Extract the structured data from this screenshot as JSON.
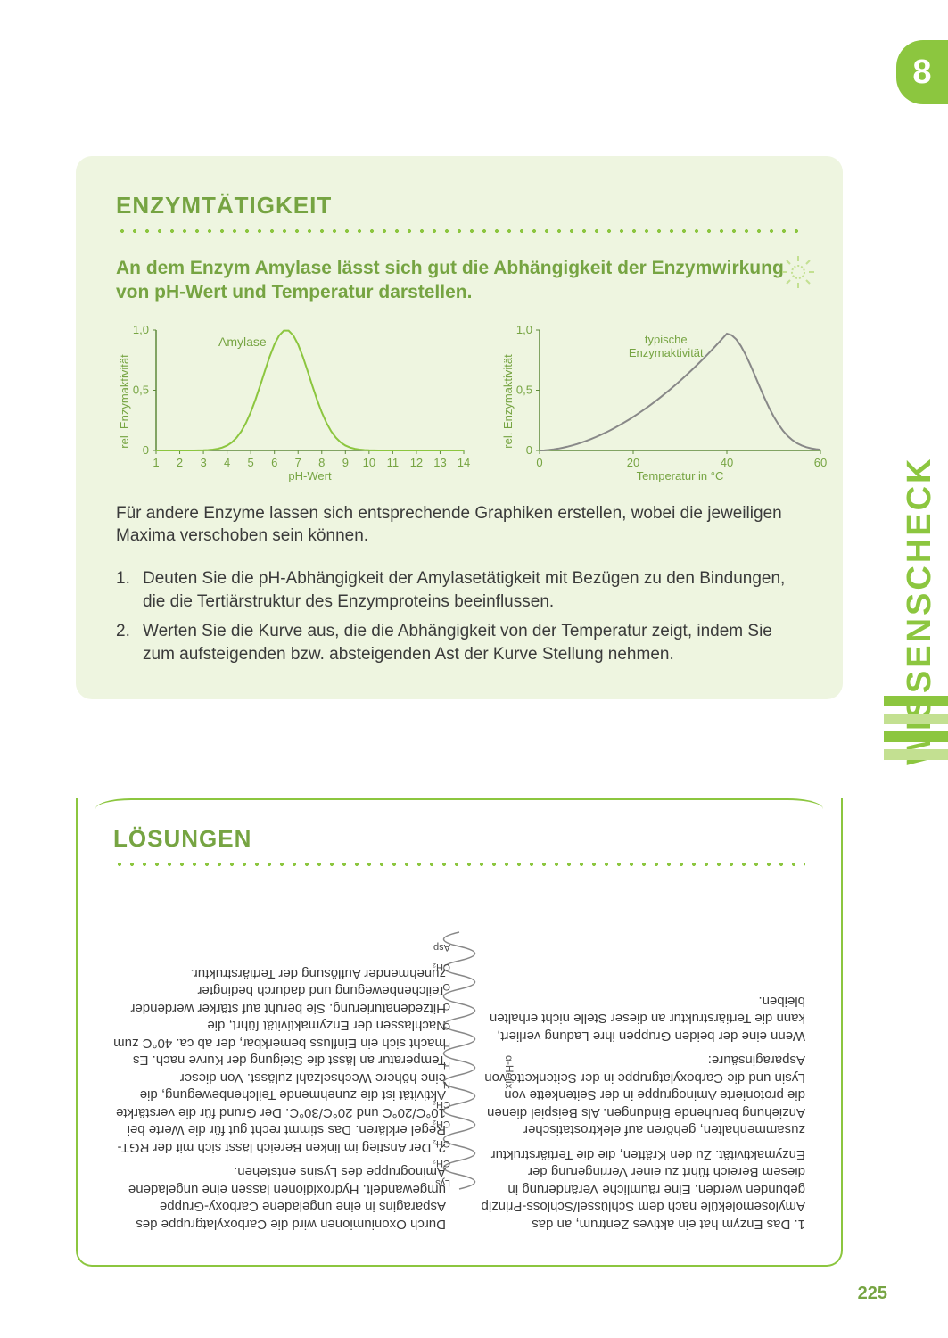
{
  "page": {
    "chapter_number": "8",
    "side_label": "WISSENSCHECK",
    "page_number": "225"
  },
  "side_bar_colors": [
    "#8cc63f",
    "#c3e091",
    "#8cc63f",
    "#c3e091"
  ],
  "main": {
    "title": "ENZYMTÄTIGKEIT",
    "intro": "An dem Enzym Amylase lässt sich gut die Abhängigkeit der Enzymwirkung von pH-Wert und Temperatur darstellen.",
    "body": "Für andere Enzyme lassen sich entsprechende Graphiken erstellen, wobei die jeweiligen Maxima verschoben sein können.",
    "questions": [
      "Deuten Sie die pH-Abhängigkeit der Amylasetätigkeit mit Bezügen zu den Bindungen, die die Tertiärstruktur des Enzymproteins beeinflussen.",
      "Werten Sie die Kurve aus, die die Abhängigkeit von der Temperatur zeigt, indem Sie zum aufsteigenden bzw. absteigenden Ast der Kurve Stellung nehmen."
    ]
  },
  "chart_ph": {
    "type": "line",
    "ylabel": "rel. Enzymaktivität",
    "xlabel": "pH-Wert",
    "legend": "Amylase",
    "ylim": [
      0,
      1.0
    ],
    "yticks": [
      "0",
      "0,5",
      "1,0"
    ],
    "xticks": [
      "1",
      "2",
      "3",
      "4",
      "5",
      "6",
      "7",
      "8",
      "9",
      "10",
      "11",
      "12",
      "13",
      "14"
    ],
    "curve_color": "#8cc63f",
    "axis_color": "#5f8a3a",
    "label_color": "#76a442",
    "font_size": 13
  },
  "chart_temp": {
    "type": "line",
    "ylabel": "rel. Enzymaktivität",
    "xlabel": "Temperatur in °C",
    "legend": "typische Enzymaktivität",
    "ylim": [
      0,
      1.0
    ],
    "yticks": [
      "0",
      "0,5",
      "1,0"
    ],
    "xticks": [
      "0",
      "20",
      "40",
      "60"
    ],
    "curve_color": "#888888",
    "axis_color": "#5f8a3a",
    "label_color": "#76a442",
    "font_size": 13
  },
  "solutions": {
    "title": "LÖSUNGEN",
    "helix_label": "α-Helix",
    "helix_residues": [
      "Lys",
      "CH₂",
      "CH₂",
      "CH₂",
      "CH₂",
      "N",
      "H",
      "H",
      "O",
      "C",
      "O",
      "CH₂",
      "Asp"
    ],
    "text_side": "zusammenhalten, gehören auf elektrostatischer Anziehung beruhende Bindungen. Als Beispiel dienen die protonierte Aminogruppe in der Seitenkette von Lysin und die Carboxylatgruppe in der Seitenkette von Asparaginsäure:",
    "paragraphs": [
      "1. Das Enzym hat ein aktives Zentrum, an das Amylosemoleküle nach dem Schlüssel/Schloss-Prinzip gebunden werden. Eine räumliche Veränderung in diesem Bereich führt zu einer Verringerung der Enzymaktivität. Zu den Kräften, die die Tertiärstruktur",
      "Wenn eine der beiden Gruppen ihre Ladung verliert, kann die Tertiärstruktur an dieser Stelle nicht erhalten bleiben.",
      "Durch Oxoniumionen wird die Carboxylatgruppe des Asparagins in eine ungeladene Carboxy-Gruppe umgewandelt. Hydroxidionen lassen eine ungeladene Aminogruppe des Lysins entstehen.",
      "2. Der Anstieg im linken Bereich lässt sich mit der RGT-Regel erklären. Das stimmt recht gut für die Werte bei 10°C/20°C und 20°C/30°C. Der Grund für die verstärkte Aktivität ist die zunehmende Teilchenbewegung, die eine höhere Wechselzahl zulässt. Von dieser Temperatur an lässt die Steigung der Kurve nach. Es macht sich ein Einfluss bemerkbar, der ab ca. 40°C zum Nachlassen der Enzymaktivität führt, die Hitzedenaturierung. Sie beruht auf stärker werdender Teilchenbewegung und dadurch bedingter zunehmender Auflösung der Tertiärstruktur."
    ]
  },
  "colors": {
    "accent": "#8cc63f",
    "accent_dark": "#76a442",
    "card_bg": "#eef5e0",
    "text": "#3a3a3a"
  }
}
